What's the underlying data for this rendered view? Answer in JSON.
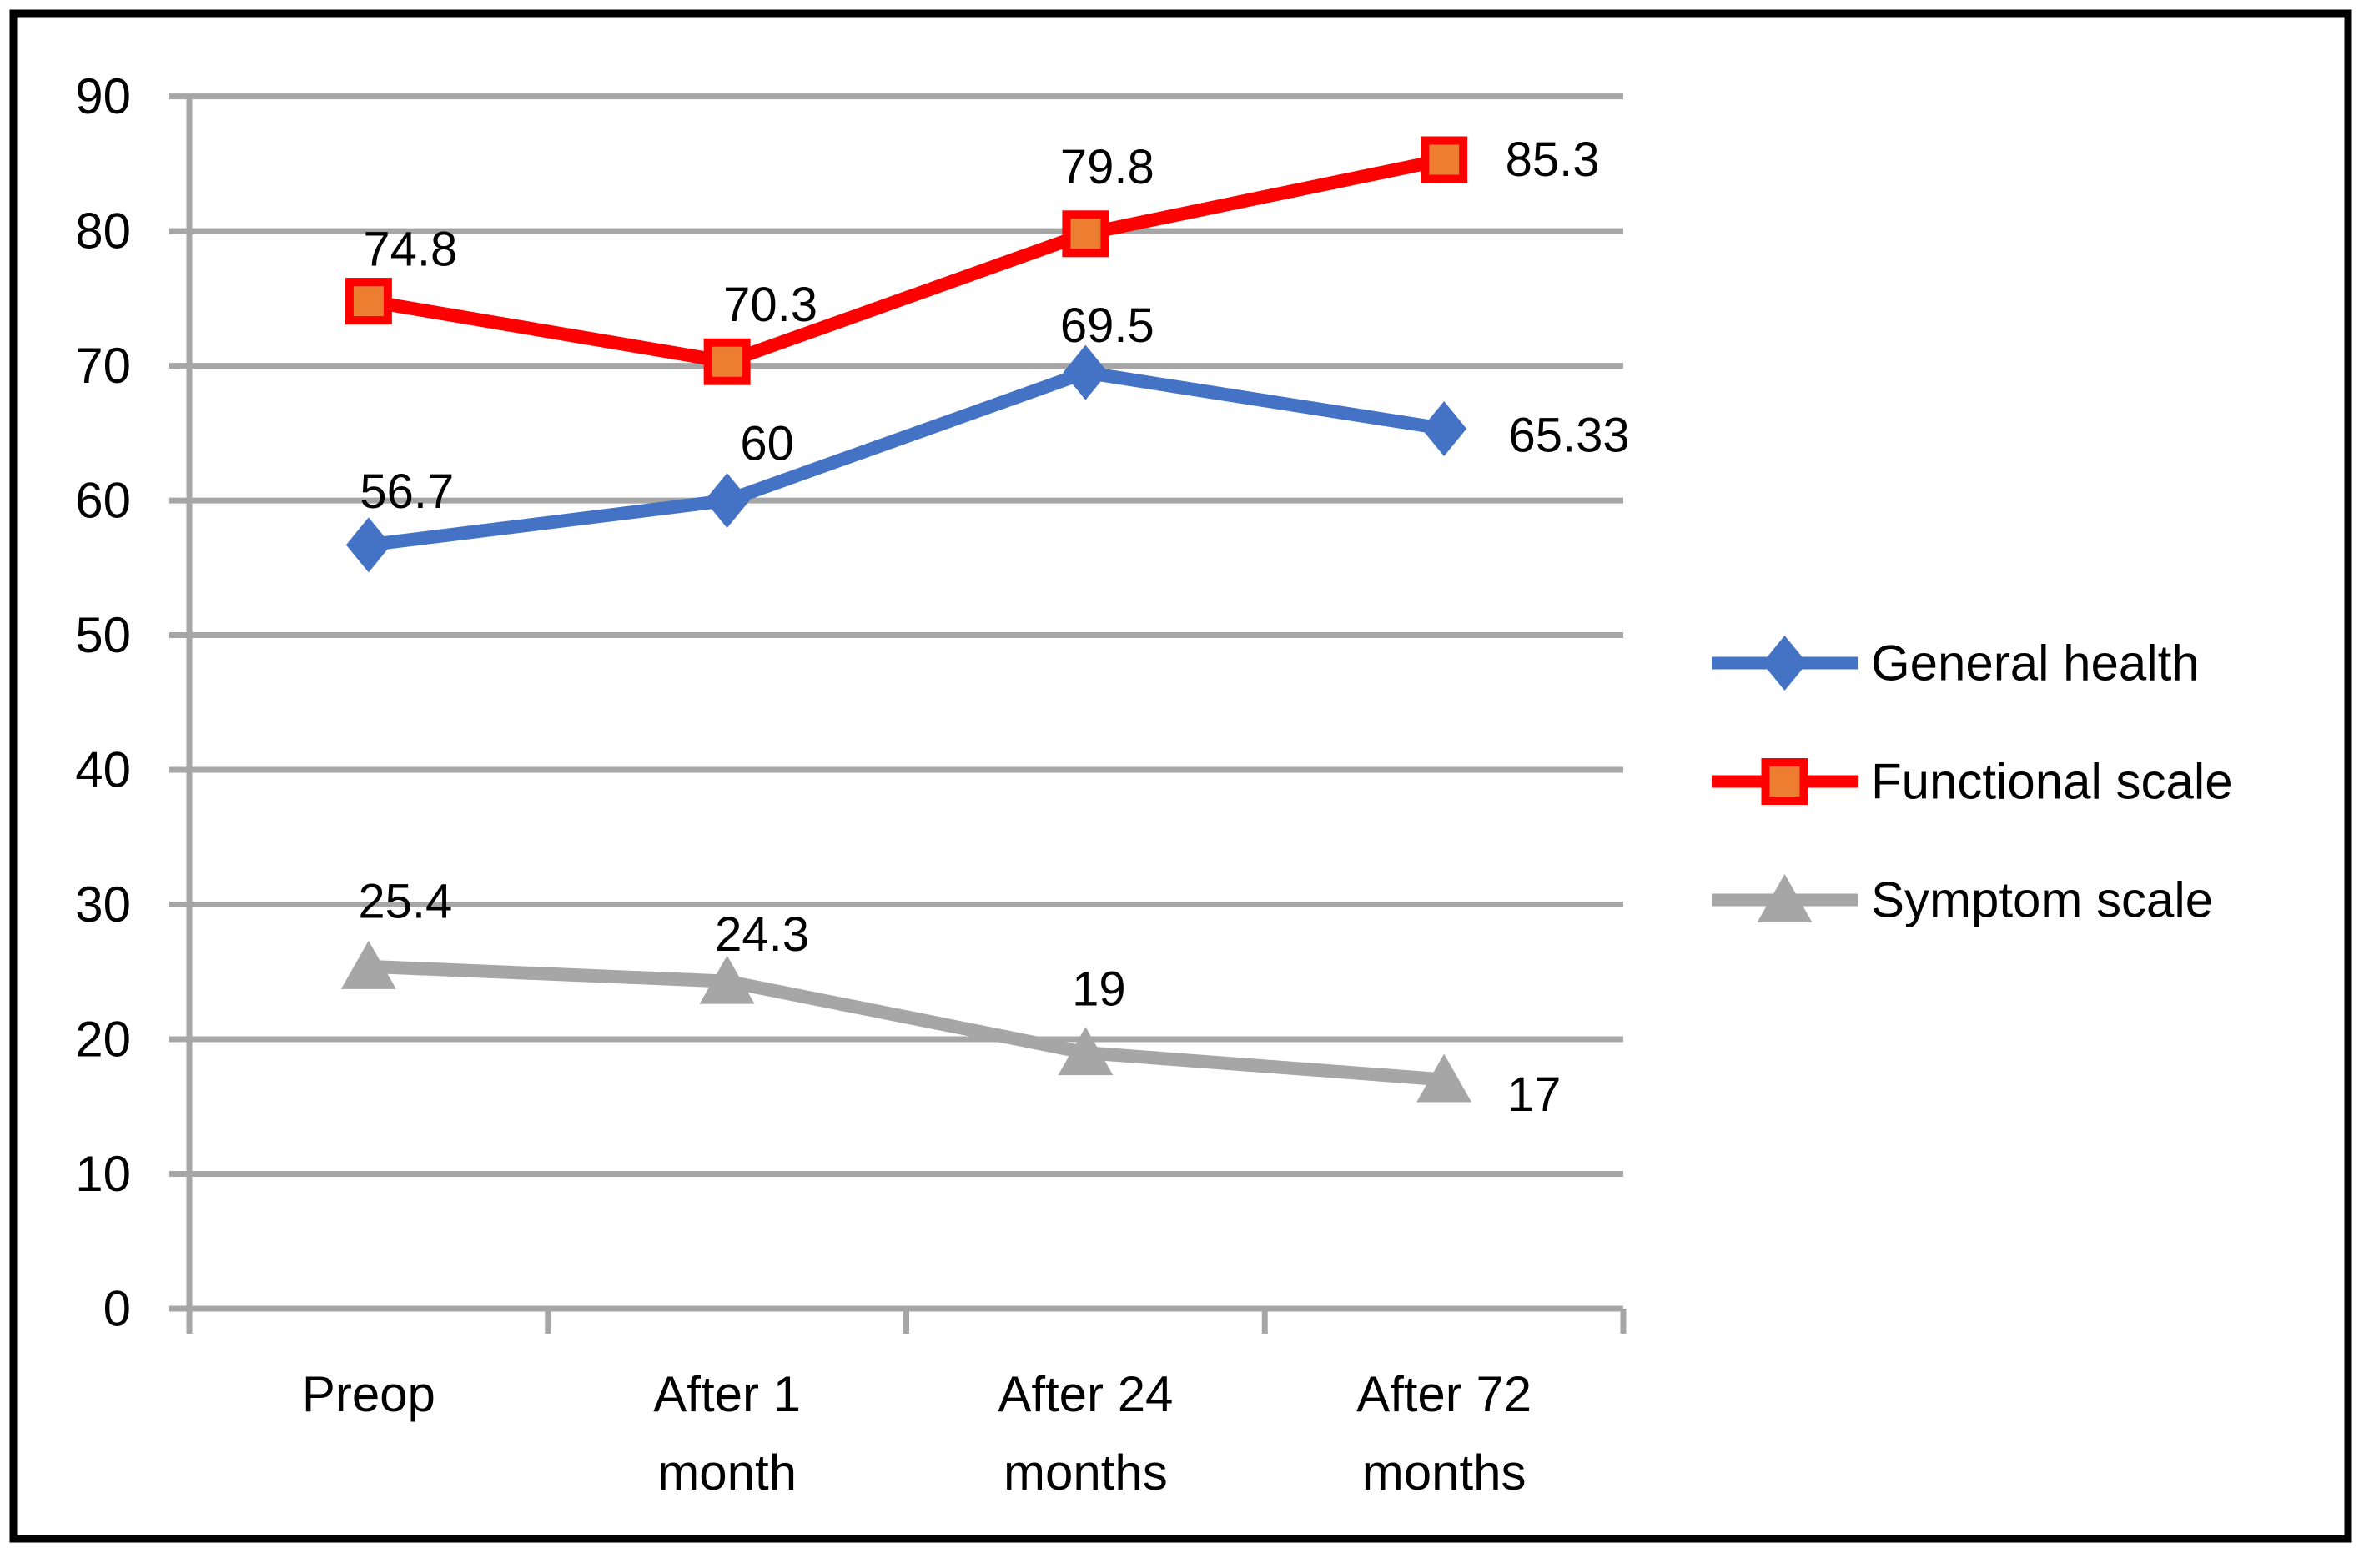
{
  "window": {
    "background": "#FFFFFF",
    "border_color": "#000000"
  },
  "chart_data": {
    "type": "line",
    "title": "",
    "categories": [
      "Preop",
      "After 1 month",
      "After 24 months",
      "After 72 months"
    ],
    "x_tick_lines": [
      [
        "Preop"
      ],
      [
        "After 1",
        "month"
      ],
      [
        "After 24",
        "months"
      ],
      [
        "After 72",
        "months"
      ]
    ],
    "y_axis": {
      "min": 0,
      "max": 90,
      "step": 10,
      "tick_labels": [
        "90",
        "80",
        "70",
        "60",
        "50",
        "40",
        "30",
        "20",
        "10",
        "0"
      ]
    },
    "grid": true,
    "gridline_color": "#A6A6A6",
    "axis_color": "#A6A6A6",
    "legend_position": "right",
    "series": [
      {
        "name": "General health",
        "color": "#4472C4",
        "marker": "diamond",
        "marker_fill": "#4472C4",
        "values": [
          56.7,
          60,
          69.5,
          65.33
        ],
        "labels": [
          "56.7",
          "60",
          "69.5",
          "65.33"
        ],
        "label_offsets": [
          [
            46,
            -64
          ],
          [
            48,
            -68
          ],
          [
            26,
            -56
          ],
          [
            150,
            8
          ]
        ]
      },
      {
        "name": "Functional scale",
        "color": "#FF0000",
        "marker": "square",
        "marker_fill": "#ED7D31",
        "values": [
          74.8,
          70.3,
          79.8,
          85.3
        ],
        "labels": [
          "74.8",
          "70.3",
          "79.8",
          "85.3"
        ],
        "label_offsets": [
          [
            50,
            -62
          ],
          [
            52,
            -68
          ],
          [
            26,
            -80
          ],
          [
            130,
            0
          ]
        ]
      },
      {
        "name": "Symptom scale",
        "color": "#A6A6A6",
        "marker": "triangle",
        "marker_fill": "#A6A6A6",
        "values": [
          25.4,
          24.3,
          19,
          17
        ],
        "labels": [
          "25.4",
          "24.3",
          "19",
          "17"
        ],
        "label_offsets": [
          [
            44,
            -78
          ],
          [
            42,
            -56
          ],
          [
            16,
            -76
          ],
          [
            108,
            18
          ]
        ]
      }
    ]
  }
}
